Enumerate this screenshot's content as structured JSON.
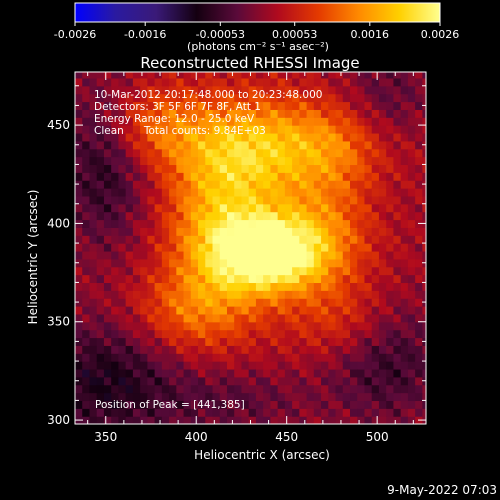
{
  "chart_data": {
    "type": "heatmap",
    "title": "Reconstructed RHESSI Image",
    "xlabel": "Heliocentric X (arcsec)",
    "ylabel": "Heliocentric Y (arcsec)",
    "xlim": [
      333,
      527
    ],
    "ylim": [
      298,
      477
    ],
    "x_ticks": [
      350,
      400,
      450,
      500
    ],
    "y_ticks": [
      300,
      350,
      400,
      450
    ],
    "colorbar": {
      "ticks": [
        "-0.0026",
        "-0.0016",
        "-0.00053",
        "0.00053",
        "0.0016",
        "0.0026"
      ],
      "tick_values": [
        -0.0026,
        -0.0016,
        -0.00053,
        0.00053,
        0.0016,
        0.0026
      ],
      "range": [
        -0.0026,
        0.0026
      ],
      "unit_label": "(photons cm⁻² s⁻¹ asec⁻²)",
      "colors": [
        "#0000ff",
        "#2a1aa0",
        "#3a1a78",
        "#140010",
        "#5a0a3a",
        "#b00a1e",
        "#e43a00",
        "#ff8a00",
        "#ffd000",
        "#ffff90"
      ]
    },
    "annotations": [
      "10-Mar-2012 20:17:48.000 to 20:23:48.000",
      "Detectors: 3F 5F 6F 7F 8F, Att 1",
      "Energy Range: 12.0 - 25.0 keV",
      "Clean      Total counts: 9.84E+03"
    ],
    "peak_label": "Position of Peak = [441,385]",
    "peak": [
      441,
      385
    ],
    "sources": [
      {
        "x": 441,
        "y": 385,
        "amp": 0.0024,
        "sx": 20,
        "sy": 13
      },
      {
        "x": 415,
        "y": 395,
        "amp": 0.0016,
        "sx": 22,
        "sy": 28
      },
      {
        "x": 425,
        "y": 440,
        "amp": 0.0014,
        "sx": 28,
        "sy": 18
      },
      {
        "x": 480,
        "y": 440,
        "amp": 0.0011,
        "sx": 28,
        "sy": 16
      },
      {
        "x": 470,
        "y": 395,
        "amp": 0.001,
        "sx": 20,
        "sy": 22
      },
      {
        "x": 375,
        "y": 450,
        "amp": 0.0009,
        "sx": 18,
        "sy": 14
      },
      {
        "x": 395,
        "y": 355,
        "amp": 0.0008,
        "sx": 22,
        "sy": 14
      },
      {
        "x": 480,
        "y": 350,
        "amp": 0.0006,
        "sx": 20,
        "sy": 14
      },
      {
        "x": 350,
        "y": 430,
        "amp": -0.0009,
        "sx": 18,
        "sy": 30
      },
      {
        "x": 350,
        "y": 320,
        "amp": -0.001,
        "sx": 28,
        "sy": 22
      },
      {
        "x": 505,
        "y": 330,
        "amp": -0.0008,
        "sx": 24,
        "sy": 22
      },
      {
        "x": 505,
        "y": 455,
        "amp": -0.0007,
        "sx": 18,
        "sy": 24
      },
      {
        "x": 420,
        "y": 310,
        "amp": -0.0005,
        "sx": 30,
        "sy": 12
      }
    ]
  },
  "footer": {
    "timestamp": "9-May-2022 07:03"
  }
}
